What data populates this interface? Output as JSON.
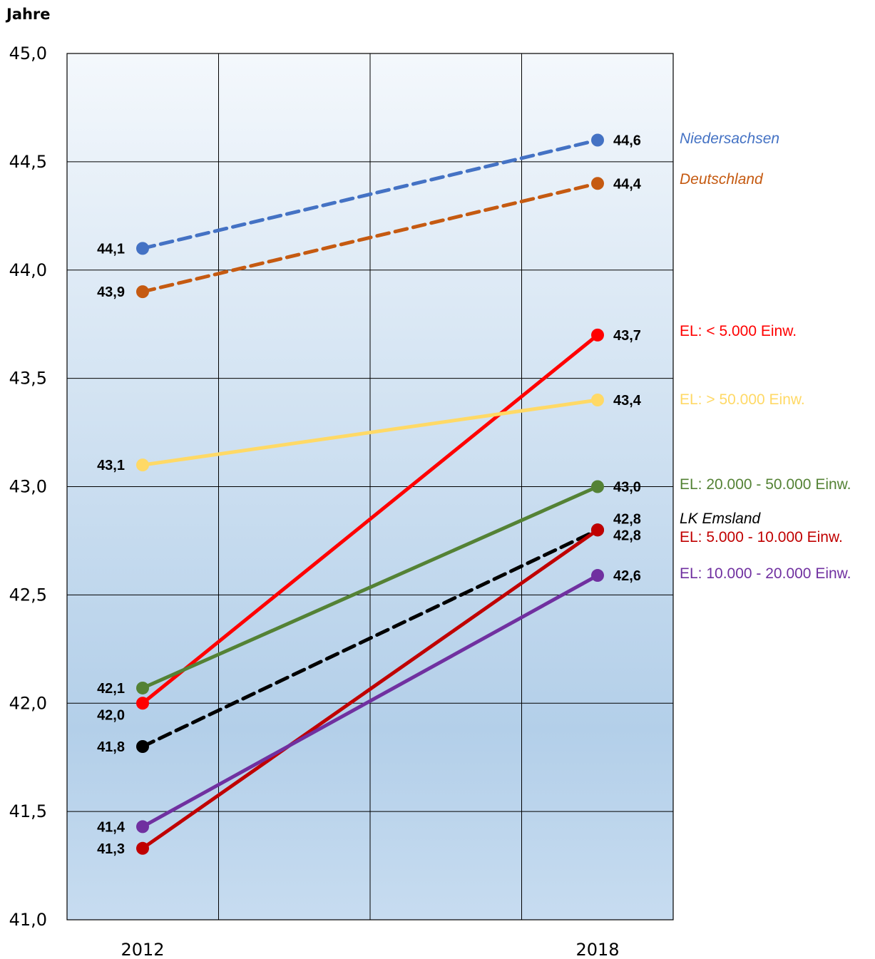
{
  "chart_data": {
    "type": "line",
    "ylabel": "Jahre",
    "xlabel": "",
    "categories": [
      "2012",
      "2018"
    ],
    "ylim": [
      41.0,
      45.0
    ],
    "yticks": [
      "45,0",
      "44,5",
      "44,0",
      "43,5",
      "43,0",
      "42,5",
      "42,0",
      "41,5",
      "41,0"
    ],
    "grid": true,
    "legend": "right, labels next to line ends",
    "series": [
      {
        "name": "Niedersachsen",
        "color": "#4472C4",
        "dashed": true,
        "italic": true,
        "values": [
          44.1,
          44.6
        ],
        "labels": [
          "44,1",
          "44,6"
        ]
      },
      {
        "name": "Deutschland",
        "color": "#C55A11",
        "dashed": true,
        "italic": true,
        "values": [
          43.9,
          44.4
        ],
        "labels": [
          "43,9",
          "44,4"
        ]
      },
      {
        "name": "EL: < 5.000 Einw.",
        "color": "#FF0000",
        "dashed": false,
        "italic": false,
        "values": [
          42.0,
          43.7
        ],
        "labels": [
          "42,0",
          "43,7"
        ]
      },
      {
        "name": "EL: > 50.000 Einw.",
        "color": "#FFD966",
        "dashed": false,
        "italic": false,
        "values": [
          43.1,
          43.4
        ],
        "labels": [
          "43,1",
          "43,4"
        ]
      },
      {
        "name": "EL: 20.000 - 50.000 Einw.",
        "color": "#548235",
        "dashed": false,
        "italic": false,
        "values": [
          42.07,
          43.0
        ],
        "labels": [
          "42,1",
          "43,0"
        ]
      },
      {
        "name": "LK Emsland",
        "color": "#000000",
        "dashed": true,
        "italic": true,
        "values": [
          41.8,
          42.8
        ],
        "labels": [
          "41,8",
          "42,8"
        ]
      },
      {
        "name": "EL: 5.000 - 10.000 Einw.",
        "color": "#C00000",
        "dashed": false,
        "italic": false,
        "values": [
          41.33,
          42.8
        ],
        "labels": [
          "41,3",
          "42,8"
        ]
      },
      {
        "name": "EL: 10.000 - 20.000 Einw.",
        "color": "#7030A0",
        "dashed": false,
        "italic": false,
        "values": [
          41.43,
          42.59
        ],
        "labels": [
          "41,4",
          "42,6"
        ]
      }
    ]
  }
}
